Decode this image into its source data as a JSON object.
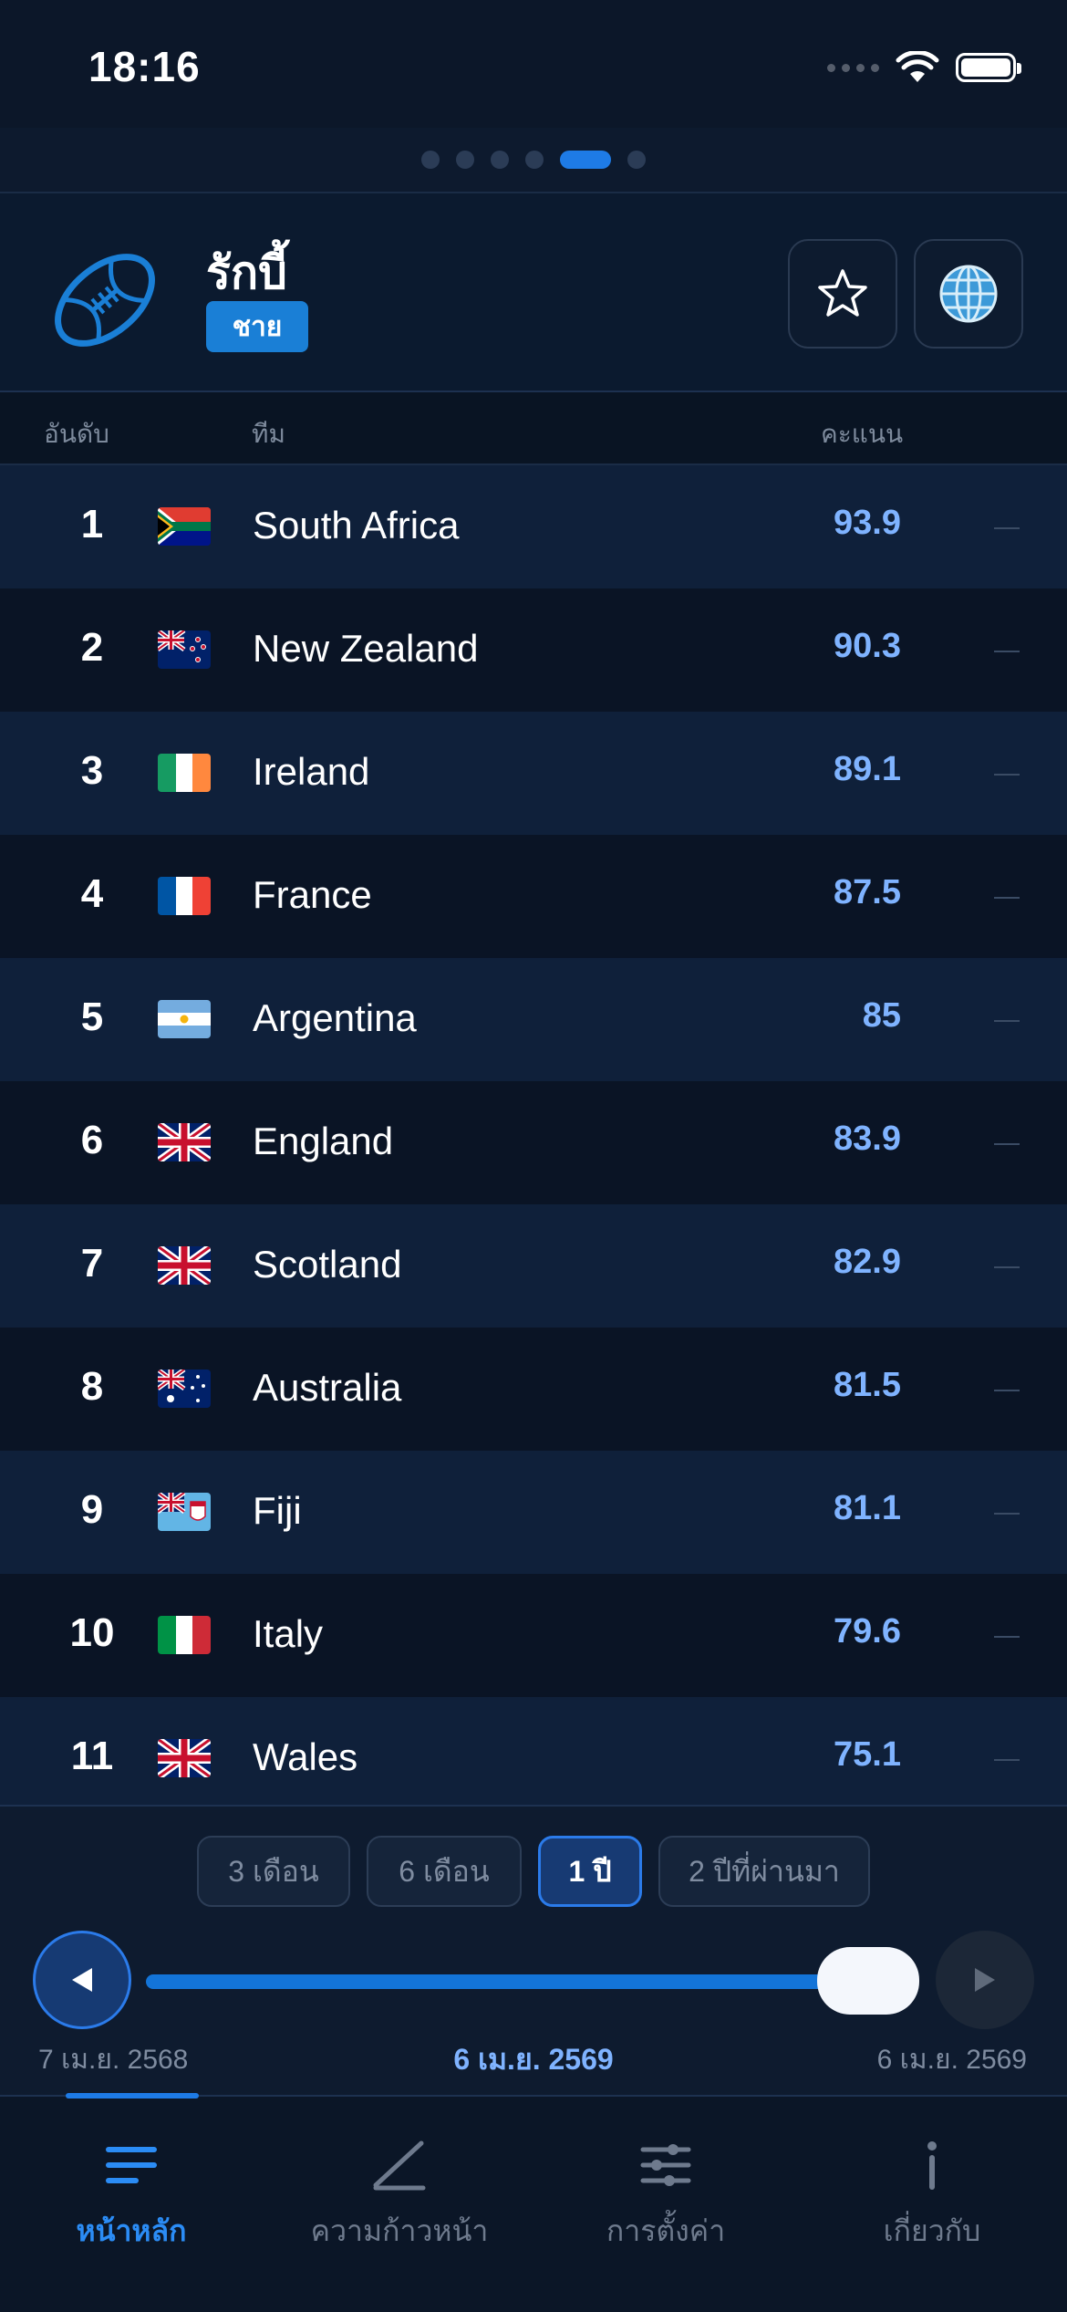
{
  "status_bar": {
    "time": "18:16"
  },
  "header": {
    "title": "รักบี้",
    "gender_badge": "ชาย"
  },
  "table_header": {
    "rank": "อันดับ",
    "team": "ทีม",
    "score": "คะแนน"
  },
  "rankings": [
    {
      "rank": "1",
      "team": "South Africa",
      "score": "93.9",
      "flag": "south-africa"
    },
    {
      "rank": "2",
      "team": "New Zealand",
      "score": "90.3",
      "flag": "new-zealand"
    },
    {
      "rank": "3",
      "team": "Ireland",
      "score": "89.1",
      "flag": "ireland"
    },
    {
      "rank": "4",
      "team": "France",
      "score": "87.5",
      "flag": "france"
    },
    {
      "rank": "5",
      "team": "Argentina",
      "score": "85",
      "flag": "argentina"
    },
    {
      "rank": "6",
      "team": "England",
      "score": "83.9",
      "flag": "united-kingdom"
    },
    {
      "rank": "7",
      "team": "Scotland",
      "score": "82.9",
      "flag": "united-kingdom"
    },
    {
      "rank": "8",
      "team": "Australia",
      "score": "81.5",
      "flag": "australia"
    },
    {
      "rank": "9",
      "team": "Fiji",
      "score": "81.1",
      "flag": "fiji"
    },
    {
      "rank": "10",
      "team": "Italy",
      "score": "79.6",
      "flag": "italy"
    },
    {
      "rank": "11",
      "team": "Wales",
      "score": "75.1",
      "flag": "united-kingdom"
    }
  ],
  "range_options": [
    {
      "label": "3 เดือน",
      "active": false
    },
    {
      "label": "6 เดือน",
      "active": false
    },
    {
      "label": "1 ปี",
      "active": true
    },
    {
      "label": "2 ปีที่ผ่านมา",
      "active": false
    }
  ],
  "timeline": {
    "start_date": "7 เม.ย. 2568",
    "current_date": "6 เม.ย. 2569",
    "end_date": "6 เม.ย. 2569",
    "position": 1.0
  },
  "tabs": [
    {
      "label": "หน้าหลัก",
      "icon": "list-icon",
      "active": true
    },
    {
      "label": "ความก้าวหน้า",
      "icon": "progress-chart-icon",
      "active": false
    },
    {
      "label": "การตั้งค่า",
      "icon": "sliders-icon",
      "active": false
    },
    {
      "label": "เกี่ยวกับ",
      "icon": "info-icon",
      "active": false
    }
  ],
  "colors": {
    "accent": "#1e7be6",
    "score": "#7fb3ff",
    "background": "#0b1627"
  }
}
